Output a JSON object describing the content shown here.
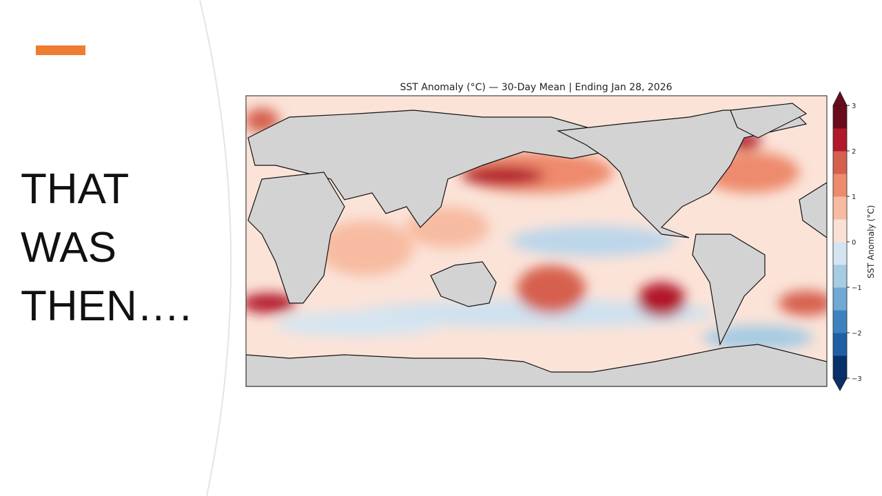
{
  "slide": {
    "title_lines": [
      "THAT",
      "WAS",
      "THEN…."
    ]
  },
  "map": {
    "title": "SST Anomaly (°C) — 30-Day Mean | Ending Jan 28, 2026",
    "colorbar": {
      "label": "SST Anomaly (°C)",
      "range": [
        -3,
        3
      ],
      "ticks": [
        {
          "value": -3,
          "label": "−3"
        },
        {
          "value": -2,
          "label": "−2"
        },
        {
          "value": -1,
          "label": "−1"
        },
        0,
        1,
        2,
        3
      ],
      "colors": [
        "#08306b",
        "#1f5fa6",
        "#3b82bf",
        "#6fa9d4",
        "#a6cbe3",
        "#d4e5f1",
        "#fbe1d5",
        "#f7bba1",
        "#ee8a6d",
        "#d6604d",
        "#b2182b",
        "#6b0a1c"
      ]
    }
  }
}
